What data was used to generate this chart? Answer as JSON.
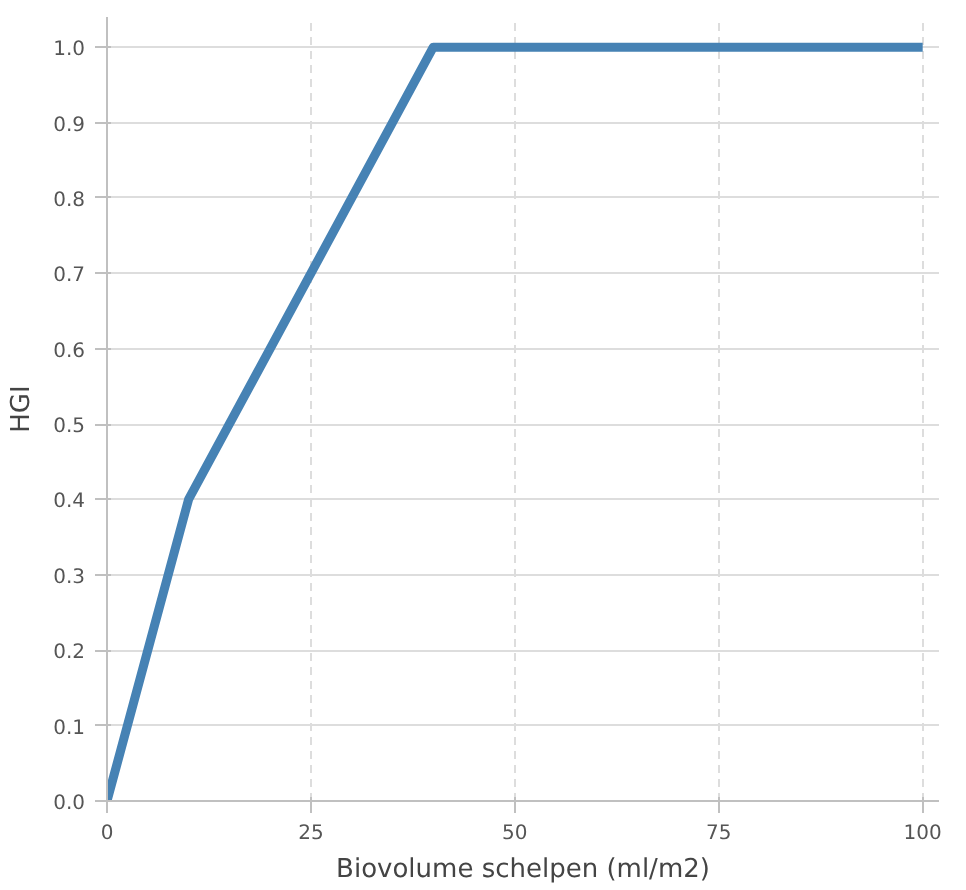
{
  "chart_data": {
    "type": "line",
    "xlabel": "Biovolume schelpen (ml/m2)",
    "ylabel": "HGI",
    "x": [
      0,
      10,
      40,
      100
    ],
    "series": [
      {
        "color": "#4682b4",
        "values": [
          0,
          0.4,
          1.0,
          1.0
        ]
      }
    ],
    "xlim": [
      0,
      102
    ],
    "ylim": [
      0,
      1.04
    ],
    "xticks": [
      0,
      25,
      50,
      75,
      100
    ],
    "yticks": [
      {
        "value": 0,
        "label": "0.0"
      },
      {
        "value": 0.1,
        "label": "0.1"
      },
      {
        "value": 0.2,
        "label": "0.2"
      },
      {
        "value": 0.3,
        "label": "0.3"
      },
      {
        "value": 0.4,
        "label": "0.4"
      },
      {
        "value": 0.5,
        "label": "0.5"
      },
      {
        "value": 0.6,
        "label": "0.6"
      },
      {
        "value": 0.7,
        "label": "0.7"
      },
      {
        "value": 0.8,
        "label": "0.8"
      },
      {
        "value": 0.9,
        "label": "0.9"
      },
      {
        "value": 1.0,
        "label": "1.0"
      }
    ],
    "grid": true,
    "line_style": "solid",
    "marker": "none"
  }
}
